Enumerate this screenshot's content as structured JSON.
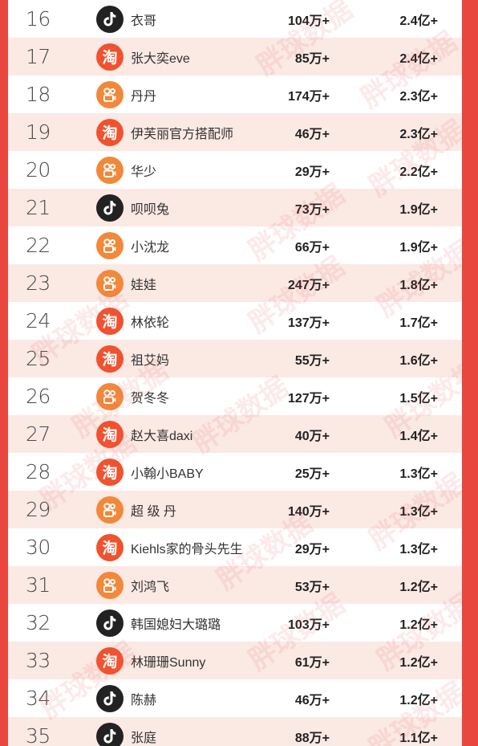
{
  "watermark": "胖球数据",
  "rows": [
    {
      "rank": "16",
      "platform": "douyin",
      "platform_icon": "douyin-icon",
      "name": "衣哥",
      "fans": "104万+",
      "sales": "2.4亿+"
    },
    {
      "rank": "17",
      "platform": "taobao",
      "platform_icon": "taobao-icon",
      "name": "张大奕eve",
      "fans": "85万+",
      "sales": "2.4亿+"
    },
    {
      "rank": "18",
      "platform": "kuaishou",
      "platform_icon": "kuaishou-icon",
      "name": "丹丹",
      "fans": "174万+",
      "sales": "2.3亿+"
    },
    {
      "rank": "19",
      "platform": "taobao",
      "platform_icon": "taobao-icon",
      "name": "伊芙丽官方搭配师",
      "fans": "46万+",
      "sales": "2.3亿+"
    },
    {
      "rank": "20",
      "platform": "kuaishou",
      "platform_icon": "kuaishou-icon",
      "name": "华少",
      "fans": "29万+",
      "sales": "2.2亿+"
    },
    {
      "rank": "21",
      "platform": "douyin",
      "platform_icon": "douyin-icon",
      "name": "呗呗兔",
      "fans": "73万+",
      "sales": "1.9亿+"
    },
    {
      "rank": "22",
      "platform": "kuaishou",
      "platform_icon": "kuaishou-icon",
      "name": "小沈龙",
      "fans": "66万+",
      "sales": "1.9亿+"
    },
    {
      "rank": "23",
      "platform": "kuaishou",
      "platform_icon": "kuaishou-icon",
      "name": "娃娃",
      "fans": "247万+",
      "sales": "1.8亿+"
    },
    {
      "rank": "24",
      "platform": "taobao",
      "platform_icon": "taobao-icon",
      "name": "林依轮",
      "fans": "137万+",
      "sales": "1.7亿+"
    },
    {
      "rank": "25",
      "platform": "taobao",
      "platform_icon": "taobao-icon",
      "name": "祖艾妈",
      "fans": "55万+",
      "sales": "1.6亿+"
    },
    {
      "rank": "26",
      "platform": "kuaishou",
      "platform_icon": "kuaishou-icon",
      "name": "贺冬冬",
      "fans": "127万+",
      "sales": "1.5亿+"
    },
    {
      "rank": "27",
      "platform": "taobao",
      "platform_icon": "taobao-icon",
      "name": "赵大喜daxi",
      "fans": "40万+",
      "sales": "1.4亿+"
    },
    {
      "rank": "28",
      "platform": "taobao",
      "platform_icon": "taobao-icon",
      "name": "小翰小BABY",
      "fans": "25万+",
      "sales": "1.3亿+"
    },
    {
      "rank": "29",
      "platform": "kuaishou",
      "platform_icon": "kuaishou-icon",
      "name": "超 级 丹",
      "fans": "140万+",
      "sales": "1.3亿+"
    },
    {
      "rank": "30",
      "platform": "taobao",
      "platform_icon": "taobao-icon",
      "name": "Kiehls家的骨头先生",
      "fans": "29万+",
      "sales": "1.3亿+"
    },
    {
      "rank": "31",
      "platform": "kuaishou",
      "platform_icon": "kuaishou-icon",
      "name": "刘鸿飞",
      "fans": "53万+",
      "sales": "1.2亿+"
    },
    {
      "rank": "32",
      "platform": "douyin",
      "platform_icon": "douyin-icon",
      "name": "韩国媳妇大璐璐",
      "fans": "103万+",
      "sales": "1.2亿+"
    },
    {
      "rank": "33",
      "platform": "taobao",
      "platform_icon": "taobao-icon",
      "name": "林珊珊Sunny",
      "fans": "61万+",
      "sales": "1.2亿+"
    },
    {
      "rank": "34",
      "platform": "douyin",
      "platform_icon": "douyin-icon",
      "name": "陈赫",
      "fans": "46万+",
      "sales": "1.2亿+"
    },
    {
      "rank": "35",
      "platform": "douyin",
      "platform_icon": "douyin-icon",
      "name": "张庭",
      "fans": "88万+",
      "sales": "1.1亿+"
    }
  ],
  "colors": {
    "frame_red": "#e8463e",
    "alt_row": "#fbe9e4",
    "douyin": "#222222",
    "taobao": "#f0522f",
    "kuaishou": "#f2883a"
  }
}
